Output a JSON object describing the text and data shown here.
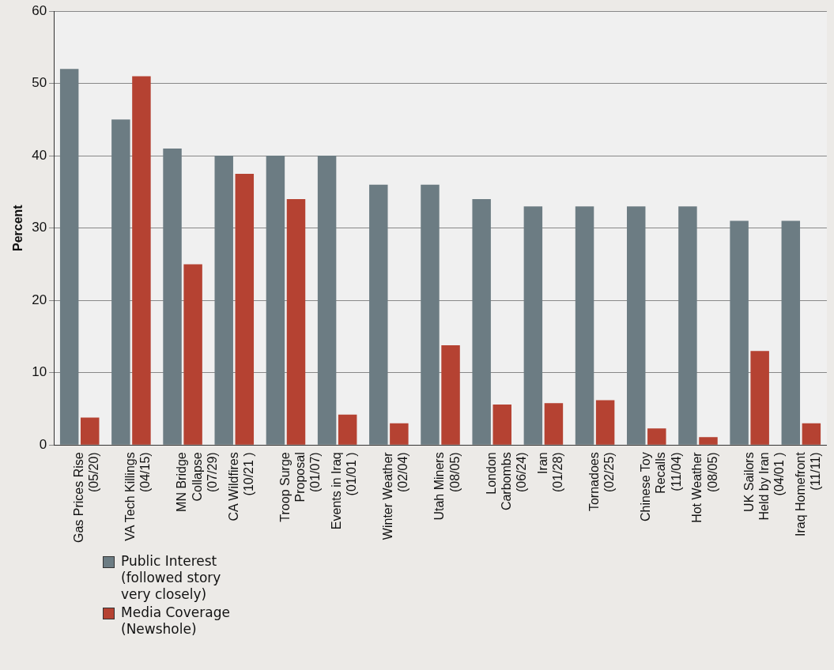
{
  "chart_data": {
    "type": "bar",
    "ylabel": "Percent",
    "categories": [
      "Gas Prices Rise\n(05/20)",
      "VA Tech Killings\n(04/15)",
      "MN Bridge\nCollapse\n(07/29)",
      "CA Wildfires\n(10/21 )",
      "Troop Surge\nProposal\n(01/07)",
      "Events in Iraq\n(01/01 )",
      "Winter Weather\n(02/04)",
      "Utah Miners\n(08/05)",
      "London\nCarbombs\n(06/24)",
      "Iran\n(01/28)",
      "Tornadoes\n(02/25)",
      "Chinese Toy\nRecalls\n(11/04)",
      "Hot Weather\n(08/05)",
      "UK Sailors\nHeld by Iran\n(04/01 )",
      "Iraq Homefront\n(11/11)"
    ],
    "series": [
      {
        "name": "Public Interest\n(followed story\nvery closely)",
        "color": "#6c7c83",
        "values": [
          52,
          45,
          41,
          40,
          40,
          40,
          36,
          36,
          34,
          33,
          33,
          33,
          33,
          31,
          31
        ]
      },
      {
        "name": "Media Coverage\n(Newshole)",
        "color": "#b54232",
        "values": [
          3.8,
          51,
          25,
          37.5,
          34,
          4.2,
          3,
          13.8,
          5.6,
          5.8,
          6.2,
          2.3,
          1.1,
          13,
          3
        ]
      }
    ],
    "ylim": [
      0,
      60
    ],
    "yticks": [
      0,
      10,
      20,
      30,
      40,
      50,
      60
    ],
    "grid": "y",
    "legend": "bottom left"
  }
}
